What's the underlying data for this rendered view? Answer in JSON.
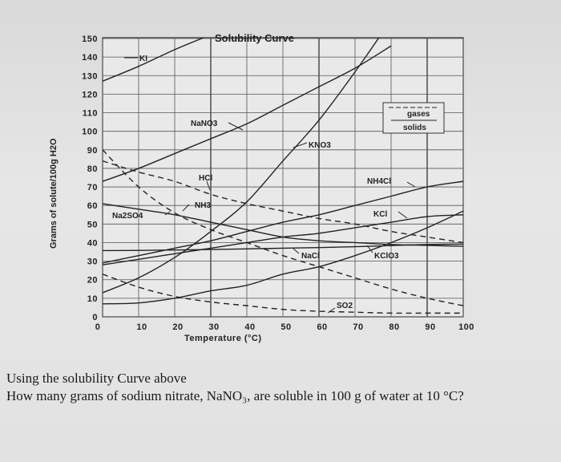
{
  "chart_data": {
    "type": "line",
    "title": "Solubility Curve",
    "xlabel": "Temperature (°C)",
    "ylabel": "Grams of solute/100g H2O",
    "xlim": [
      0,
      100
    ],
    "ylim": [
      0,
      150
    ],
    "x_ticks": [
      "0",
      "10",
      "20",
      "30",
      "40",
      "50",
      "60",
      "70",
      "80",
      "90",
      "100"
    ],
    "y_ticks": [
      "0",
      "10",
      "20",
      "30",
      "40",
      "50",
      "60",
      "70",
      "80",
      "90",
      "100",
      "110",
      "120",
      "130",
      "140",
      "150"
    ],
    "grid": true,
    "legend": {
      "placement": "right",
      "entries": [
        {
          "label": "gases",
          "style": "dashed"
        },
        {
          "label": "solids",
          "style": "solid"
        }
      ]
    },
    "x": [
      0,
      10,
      20,
      30,
      40,
      50,
      60,
      70,
      80,
      90,
      100
    ],
    "series": [
      {
        "name": "KI",
        "label": "KI",
        "style": "solid",
        "values": [
          127,
          135,
          144,
          152,
          null,
          null,
          null,
          null,
          null,
          null,
          null
        ]
      },
      {
        "name": "NaNO3",
        "label": "NaNO3",
        "style": "solid",
        "values": [
          73,
          80,
          88,
          96,
          104,
          114,
          124,
          134,
          146,
          null,
          null
        ]
      },
      {
        "name": "KNO3",
        "label": "KNO3",
        "style": "solid",
        "values": [
          13,
          21,
          32,
          46,
          62,
          84,
          106,
          132,
          160,
          null,
          null
        ]
      },
      {
        "name": "NH4Cl",
        "label": "NH4Cl",
        "style": "solid",
        "values": [
          29,
          33,
          37,
          41,
          46,
          51,
          55,
          60,
          65,
          70,
          73
        ]
      },
      {
        "name": "KCl",
        "label": "KCl",
        "style": "solid",
        "values": [
          28,
          31,
          34,
          37,
          40,
          43,
          45,
          48,
          51,
          54,
          55
        ]
      },
      {
        "name": "NaCl",
        "label": "NaCl",
        "style": "solid",
        "values": [
          35.7,
          35.8,
          36,
          36.3,
          36.6,
          37,
          37.3,
          37.8,
          38.4,
          39,
          39.2
        ]
      },
      {
        "name": "KClO3",
        "label": "KClO3",
        "style": "solid",
        "values": [
          7,
          7.5,
          10,
          14,
          17,
          23,
          27,
          33,
          40,
          48,
          57
        ]
      },
      {
        "name": "Na2SO4",
        "label": "Na2SO4",
        "style": "solid",
        "values": [
          61,
          58,
          55,
          51,
          47,
          43,
          41,
          40,
          39,
          38.5,
          38
        ]
      },
      {
        "name": "HCl",
        "label": "HCl",
        "style": "dashed",
        "values": [
          84,
          78,
          73,
          66,
          61,
          57,
          53,
          50,
          46,
          43,
          40
        ]
      },
      {
        "name": "NH3",
        "label": "NH3",
        "style": "dashed",
        "values": [
          90,
          70,
          56,
          47,
          40,
          33,
          27,
          21,
          15,
          10,
          6
        ]
      },
      {
        "name": "SO2",
        "label": "SO2",
        "style": "dashed",
        "values": [
          23,
          16,
          11,
          8,
          6,
          4,
          3,
          2.5,
          2,
          2,
          2
        ]
      }
    ]
  },
  "question": {
    "line1": "Using the solubility Curve above",
    "line2": "How many grams of sodium nitrate, NaNO₃, are soluble in 100 g of water at 10 °C?"
  }
}
